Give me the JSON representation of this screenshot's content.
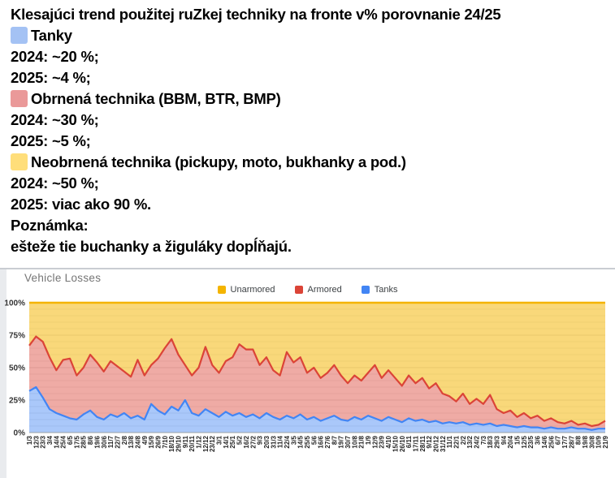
{
  "post": {
    "title": "Klesajúci trend použitej ruZkej techniky na fronte v% porovnanie 24/25",
    "sections": [
      {
        "chip_color": "#A4C2F4",
        "label": "Tanky",
        "lines": [
          "2024: ~20 %;",
          "2025: ~4 %;"
        ]
      },
      {
        "chip_color": "#EA9999",
        "label": "Obrnená technika (BBM, BTR, BMP)",
        "lines": [
          "2024: ~30 %;",
          "2025: ~5 %;"
        ]
      },
      {
        "chip_color": "#FFDE7A",
        "label": "Neobrnená technika (pickupy, moto, bukhanky a pod.)",
        "lines": [
          "2024: ~50 %;",
          "2025: viac ako 90 %."
        ]
      }
    ],
    "note_label": "Poznámka:",
    "note_text": "ešteže tie buchanky a žiguláky dopĺňajú."
  },
  "chart_data": {
    "type": "area",
    "stacked": true,
    "percent_stacked": true,
    "title": "Vehicle Losses",
    "legend": [
      {
        "label": "Unarmored",
        "color": "#F4B400"
      },
      {
        "label": "Armored",
        "color": "#DB4437"
      },
      {
        "label": "Tanks",
        "color": "#4285F4"
      }
    ],
    "legend_position": "top-center",
    "grid": "horizontal-minor-5pct",
    "ylim": [
      0,
      100
    ],
    "yticks": [
      {
        "value": 0,
        "label": "0%"
      },
      {
        "value": 25,
        "label": "25%"
      },
      {
        "value": 50,
        "label": "50%"
      },
      {
        "value": 75,
        "label": "75%"
      },
      {
        "value": 100,
        "label": "100%"
      }
    ],
    "x": [
      "1/3",
      "12/3",
      "23/3",
      "3/4",
      "14/4",
      "25/4",
      "6/5",
      "17/5",
      "28/5",
      "8/6",
      "19/6",
      "30/6",
      "11/7",
      "22/7",
      "2/8",
      "13/8",
      "24/8",
      "4/9",
      "15/9",
      "26/9",
      "7/10",
      "18/10",
      "29/10",
      "9/11",
      "20/11",
      "1/12",
      "12/12",
      "23/12",
      "3/1",
      "14/1",
      "25/1",
      "5/2",
      "16/2",
      "27/2",
      "9/3",
      "20/3",
      "31/3",
      "11/4",
      "22/4",
      "3/5",
      "14/5",
      "25/5",
      "5/6",
      "16/6",
      "27/6",
      "8/7",
      "19/7",
      "30/7",
      "10/8",
      "21/8",
      "1/9",
      "12/9",
      "23/9",
      "4/10",
      "15/10",
      "26/10",
      "6/11",
      "17/11",
      "28/11",
      "9/12",
      "20/12",
      "31/12",
      "11/1",
      "22/1",
      "2/2",
      "13/2",
      "24/2",
      "7/3",
      "18/3",
      "29/3",
      "9/4",
      "20/4",
      "1/5",
      "12/5",
      "23/5",
      "3/6",
      "14/6",
      "25/6",
      "6/7",
      "17/7",
      "28/7",
      "8/8",
      "19/8",
      "30/8",
      "10/9",
      "21/9"
    ],
    "series": [
      {
        "name": "Tanks",
        "color": "#4285F4",
        "fill_opacity": 0.45,
        "values": [
          32,
          35,
          27,
          18,
          15,
          13,
          11,
          10,
          14,
          17,
          12,
          10,
          14,
          12,
          15,
          11,
          13,
          10,
          22,
          17,
          14,
          20,
          17,
          25,
          15,
          13,
          18,
          15,
          12,
          16,
          13,
          15,
          12,
          14,
          11,
          15,
          12,
          10,
          13,
          11,
          14,
          10,
          12,
          9,
          11,
          13,
          10,
          9,
          12,
          10,
          13,
          11,
          9,
          12,
          10,
          8,
          11,
          9,
          10,
          8,
          9,
          7,
          8,
          7,
          8,
          6,
          7,
          6,
          7,
          5,
          6,
          5,
          4,
          5,
          4,
          4,
          3,
          4,
          3,
          3,
          4,
          3,
          3,
          2,
          3,
          3
        ]
      },
      {
        "name": "Armored",
        "color": "#DB4437",
        "fill_opacity": 0.45,
        "values": [
          35,
          39,
          43,
          40,
          33,
          43,
          46,
          34,
          36,
          43,
          42,
          37,
          41,
          39,
          32,
          32,
          43,
          34,
          30,
          40,
          51,
          52,
          43,
          27,
          29,
          37,
          48,
          37,
          34,
          39,
          45,
          53,
          52,
          50,
          41,
          43,
          36,
          34,
          49,
          43,
          44,
          36,
          38,
          33,
          35,
          39,
          34,
          29,
          32,
          30,
          33,
          41,
          33,
          36,
          32,
          28,
          33,
          29,
          32,
          26,
          29,
          23,
          20,
          17,
          22,
          16,
          19,
          16,
          22,
          13,
          9,
          12,
          8,
          10,
          7,
          9,
          6,
          7,
          5,
          4,
          5,
          3,
          4,
          3,
          3,
          6
        ]
      },
      {
        "name": "Unarmored",
        "color": "#F4B400",
        "fill_opacity": 0.52,
        "values": [
          33,
          26,
          30,
          42,
          52,
          44,
          43,
          56,
          50,
          40,
          46,
          53,
          45,
          49,
          53,
          57,
          44,
          56,
          48,
          43,
          35,
          28,
          40,
          48,
          56,
          50,
          34,
          48,
          54,
          45,
          42,
          32,
          36,
          36,
          48,
          42,
          52,
          56,
          38,
          46,
          42,
          54,
          50,
          58,
          54,
          48,
          56,
          62,
          56,
          60,
          54,
          48,
          58,
          52,
          58,
          64,
          56,
          62,
          58,
          66,
          62,
          70,
          72,
          76,
          70,
          78,
          74,
          78,
          71,
          82,
          85,
          83,
          88,
          85,
          89,
          87,
          91,
          89,
          92,
          93,
          91,
          94,
          93,
          95,
          94,
          91
        ]
      }
    ]
  }
}
